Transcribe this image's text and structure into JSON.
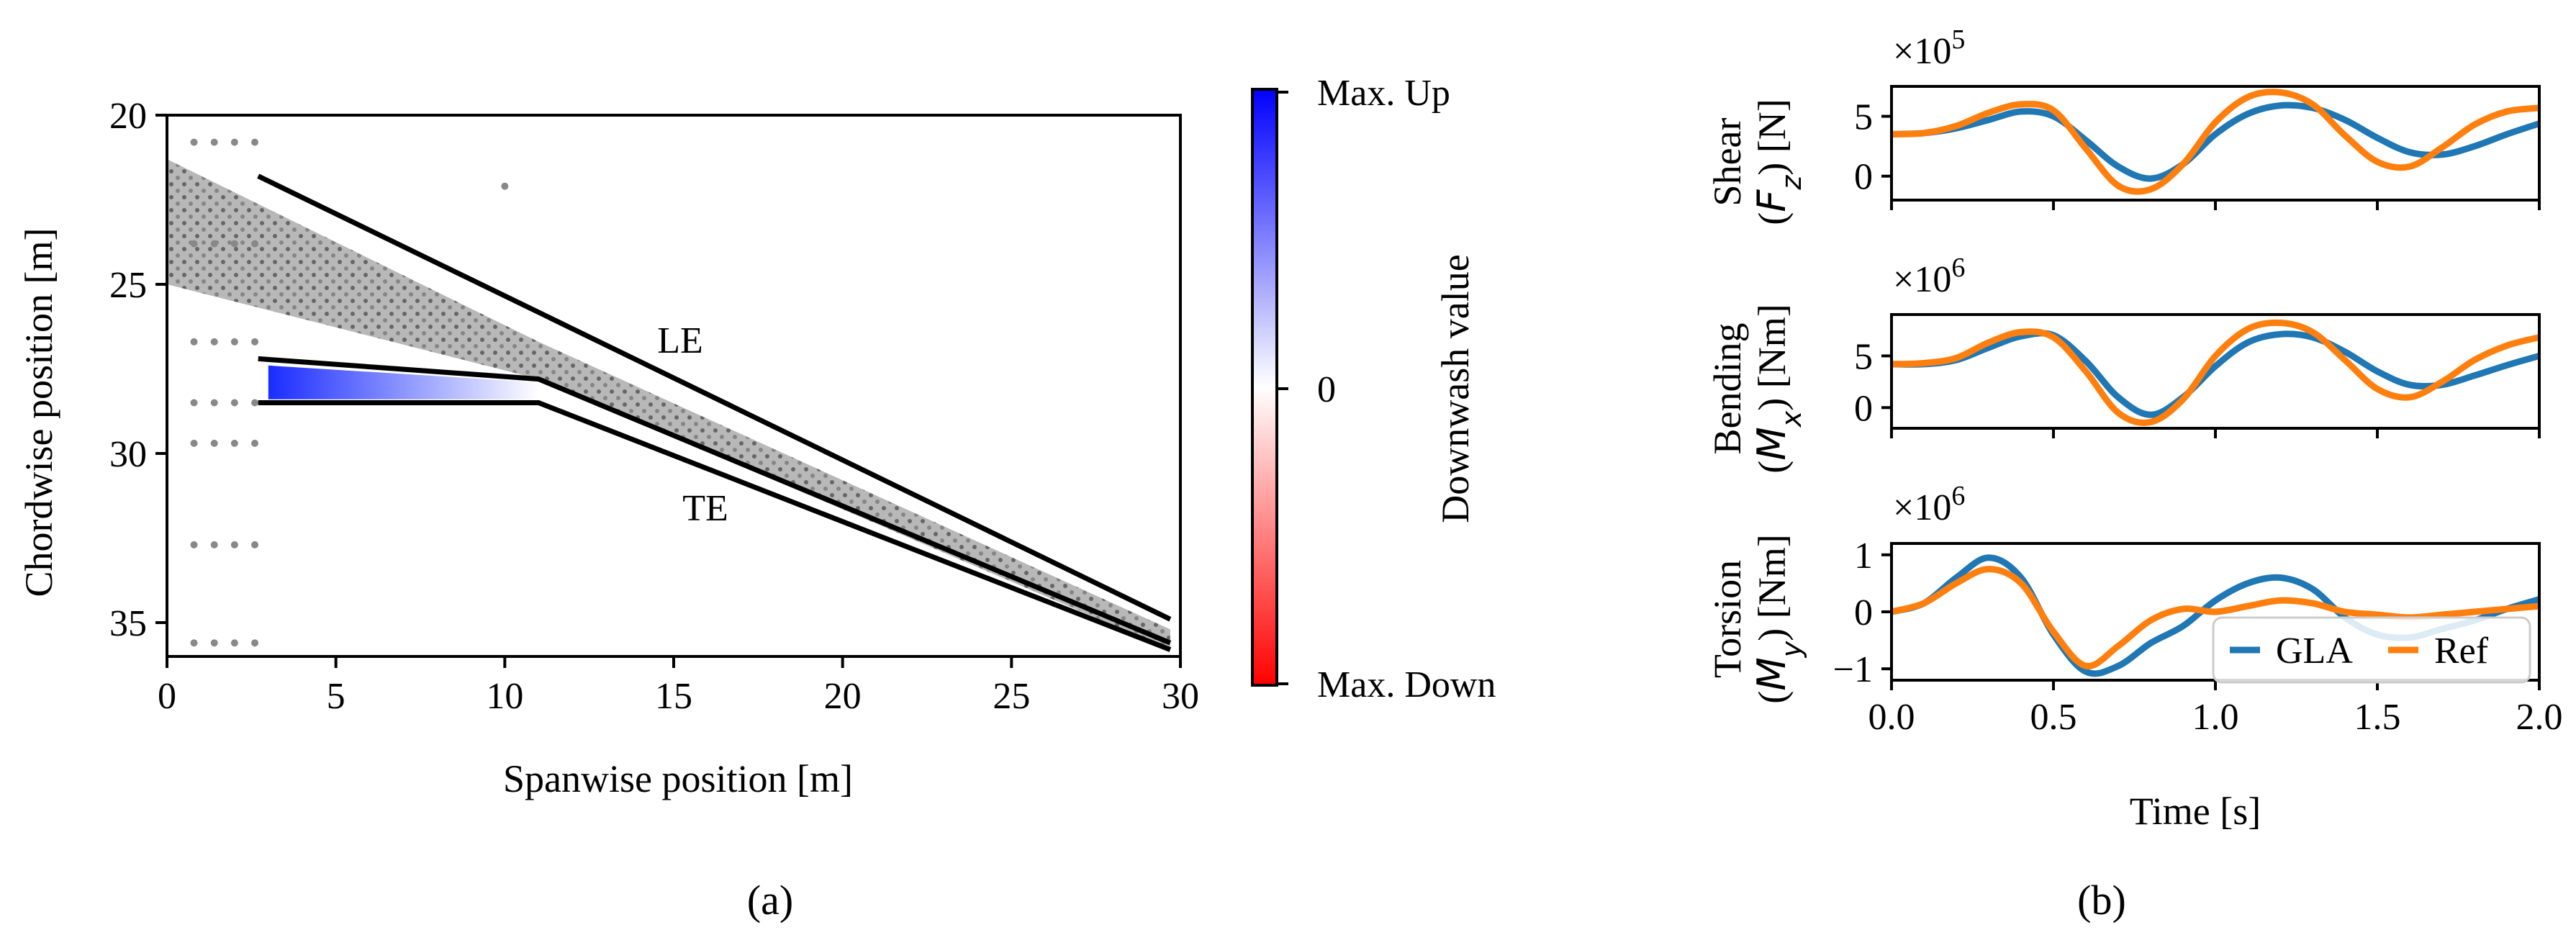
{
  "colors": {
    "gla": "#1f77b4",
    "ref": "#ff7f0e",
    "up": "#0000ff",
    "down": "#ff0000",
    "axis": "#000000"
  },
  "panel_a": {
    "caption": "(a)",
    "annotations": {
      "le": "LE",
      "te": "TE"
    },
    "colorbar": {
      "label": "Downwash value",
      "ticks": [
        "Max. Up",
        "0",
        "Max. Down"
      ]
    }
  },
  "panel_b": {
    "caption": "(b)",
    "legend": [
      "GLA",
      "Ref"
    ]
  },
  "chart_data": [
    {
      "type": "scatter",
      "title": "",
      "xlabel": "Spanwise position [m]",
      "ylabel": "Chordwise position [m]",
      "xlim": [
        0,
        30
      ],
      "ylim": [
        36,
        20
      ],
      "xticks": [
        0,
        5,
        10,
        15,
        20,
        25,
        30
      ],
      "yticks": [
        20,
        25,
        30,
        35
      ],
      "grid": false,
      "leading_edge_line": [
        [
          2.7,
          21.8
        ],
        [
          29.7,
          34.9
        ]
      ],
      "trailing_edge_line": [
        [
          2.7,
          28.5
        ],
        [
          11.0,
          28.5
        ],
        [
          29.7,
          35.8
        ]
      ],
      "inner_edge_line": [
        [
          2.7,
          27.2
        ],
        [
          11.0,
          27.8
        ],
        [
          29.7,
          35.6
        ]
      ],
      "gust_region_outline": [
        [
          0,
          21.3
        ],
        [
          0,
          25.0
        ],
        [
          11.0,
          27.8
        ],
        [
          29.7,
          35.8
        ],
        [
          29.7,
          35.2
        ],
        [
          11.0,
          26.7
        ]
      ],
      "shaded_downwash_region": [
        [
          3.0,
          27.4
        ],
        [
          11.0,
          27.9
        ],
        [
          11.0,
          28.4
        ],
        [
          3.0,
          28.4
        ]
      ]
    },
    {
      "type": "line",
      "ylabel": "Shear (F_z) [N]",
      "multiplier": "×10^5",
      "xlim": [
        0,
        2
      ],
      "ylim": [
        -2,
        7.5
      ],
      "yticks": [
        0,
        5
      ],
      "xticks": [
        0.0,
        0.5,
        1.0,
        1.5,
        2.0
      ],
      "grid": false,
      "series": [
        {
          "name": "GLA",
          "x": [
            0.0,
            0.1,
            0.2,
            0.3,
            0.4,
            0.5,
            0.6,
            0.7,
            0.8,
            0.9,
            1.0,
            1.1,
            1.2,
            1.3,
            1.4,
            1.5,
            1.6,
            1.7,
            1.8,
            1.9,
            2.0
          ],
          "values": [
            3.5,
            3.6,
            4.0,
            4.7,
            5.4,
            5.0,
            3.0,
            0.8,
            -0.2,
            1.0,
            3.5,
            5.2,
            5.9,
            5.7,
            4.7,
            3.2,
            2.0,
            1.8,
            2.5,
            3.5,
            4.4
          ]
        },
        {
          "name": "Ref",
          "x": [
            0.0,
            0.1,
            0.2,
            0.3,
            0.4,
            0.5,
            0.6,
            0.7,
            0.8,
            0.9,
            1.0,
            1.1,
            1.2,
            1.3,
            1.4,
            1.5,
            1.6,
            1.7,
            1.8,
            1.9,
            2.0
          ],
          "values": [
            3.5,
            3.6,
            4.2,
            5.3,
            6.0,
            5.5,
            2.3,
            -0.8,
            -1.1,
            1.0,
            4.5,
            6.6,
            7.0,
            6.0,
            3.4,
            1.2,
            0.8,
            2.4,
            4.3,
            5.4,
            5.7
          ]
        }
      ]
    },
    {
      "type": "line",
      "ylabel": "Bending (M_x) [Nm]",
      "multiplier": "×10^6",
      "xlim": [
        0,
        2
      ],
      "ylim": [
        -2,
        9
      ],
      "yticks": [
        0,
        5
      ],
      "xticks": [
        0.0,
        0.5,
        1.0,
        1.5,
        2.0
      ],
      "grid": false,
      "series": [
        {
          "name": "GLA",
          "x": [
            0.0,
            0.1,
            0.2,
            0.3,
            0.4,
            0.5,
            0.6,
            0.7,
            0.8,
            0.9,
            1.0,
            1.1,
            1.2,
            1.3,
            1.4,
            1.5,
            1.6,
            1.7,
            1.8,
            1.9,
            2.0
          ],
          "values": [
            4.2,
            4.2,
            4.6,
            5.8,
            6.9,
            7.0,
            4.5,
            1.0,
            -0.7,
            1.0,
            4.0,
            6.3,
            7.1,
            6.8,
            5.4,
            3.5,
            2.2,
            2.2,
            3.1,
            4.1,
            5.0
          ]
        },
        {
          "name": "Ref",
          "x": [
            0.0,
            0.1,
            0.2,
            0.3,
            0.4,
            0.5,
            0.6,
            0.7,
            0.8,
            0.9,
            1.0,
            1.1,
            1.2,
            1.3,
            1.4,
            1.5,
            1.6,
            1.7,
            1.8,
            1.9,
            2.0
          ],
          "values": [
            4.2,
            4.3,
            4.8,
            6.3,
            7.3,
            6.8,
            3.5,
            -0.5,
            -1.4,
            0.8,
            5.0,
            7.6,
            8.2,
            7.3,
            4.6,
            1.8,
            1.0,
            2.5,
            4.6,
            6.0,
            6.8
          ]
        }
      ]
    },
    {
      "type": "line",
      "ylabel": "Torsion (M_y) [Nm]",
      "multiplier": "×10^6",
      "xlim": [
        0,
        2
      ],
      "ylim": [
        -1.2,
        1.2
      ],
      "yticks": [
        -1,
        0,
        1
      ],
      "xticks": [
        0.0,
        0.5,
        1.0,
        1.5,
        2.0
      ],
      "xticklabels": [
        "0.0",
        "0.5",
        "1.0",
        "1.5",
        "2.0"
      ],
      "xlabel": "Time [s]",
      "grid": false,
      "legend_position": "lower-right",
      "series": [
        {
          "name": "GLA",
          "x": [
            0.0,
            0.1,
            0.2,
            0.3,
            0.4,
            0.5,
            0.6,
            0.7,
            0.8,
            0.9,
            1.0,
            1.1,
            1.2,
            1.3,
            1.4,
            1.5,
            1.6,
            1.7,
            1.8,
            1.9,
            2.0
          ],
          "values": [
            0.0,
            0.15,
            0.6,
            0.95,
            0.6,
            -0.4,
            -1.05,
            -0.95,
            -0.55,
            -0.25,
            0.2,
            0.5,
            0.6,
            0.4,
            -0.1,
            -0.4,
            -0.45,
            -0.3,
            -0.15,
            0.05,
            0.22
          ]
        },
        {
          "name": "Ref",
          "x": [
            0.0,
            0.1,
            0.2,
            0.3,
            0.4,
            0.5,
            0.6,
            0.7,
            0.8,
            0.9,
            1.0,
            1.1,
            1.2,
            1.3,
            1.4,
            1.5,
            1.6,
            1.7,
            1.8,
            1.9,
            2.0
          ],
          "values": [
            0.0,
            0.15,
            0.5,
            0.75,
            0.5,
            -0.35,
            -0.95,
            -0.6,
            -0.15,
            0.05,
            0.0,
            0.1,
            0.2,
            0.15,
            0.0,
            -0.05,
            -0.1,
            -0.05,
            0.0,
            0.05,
            0.1
          ]
        }
      ]
    }
  ]
}
